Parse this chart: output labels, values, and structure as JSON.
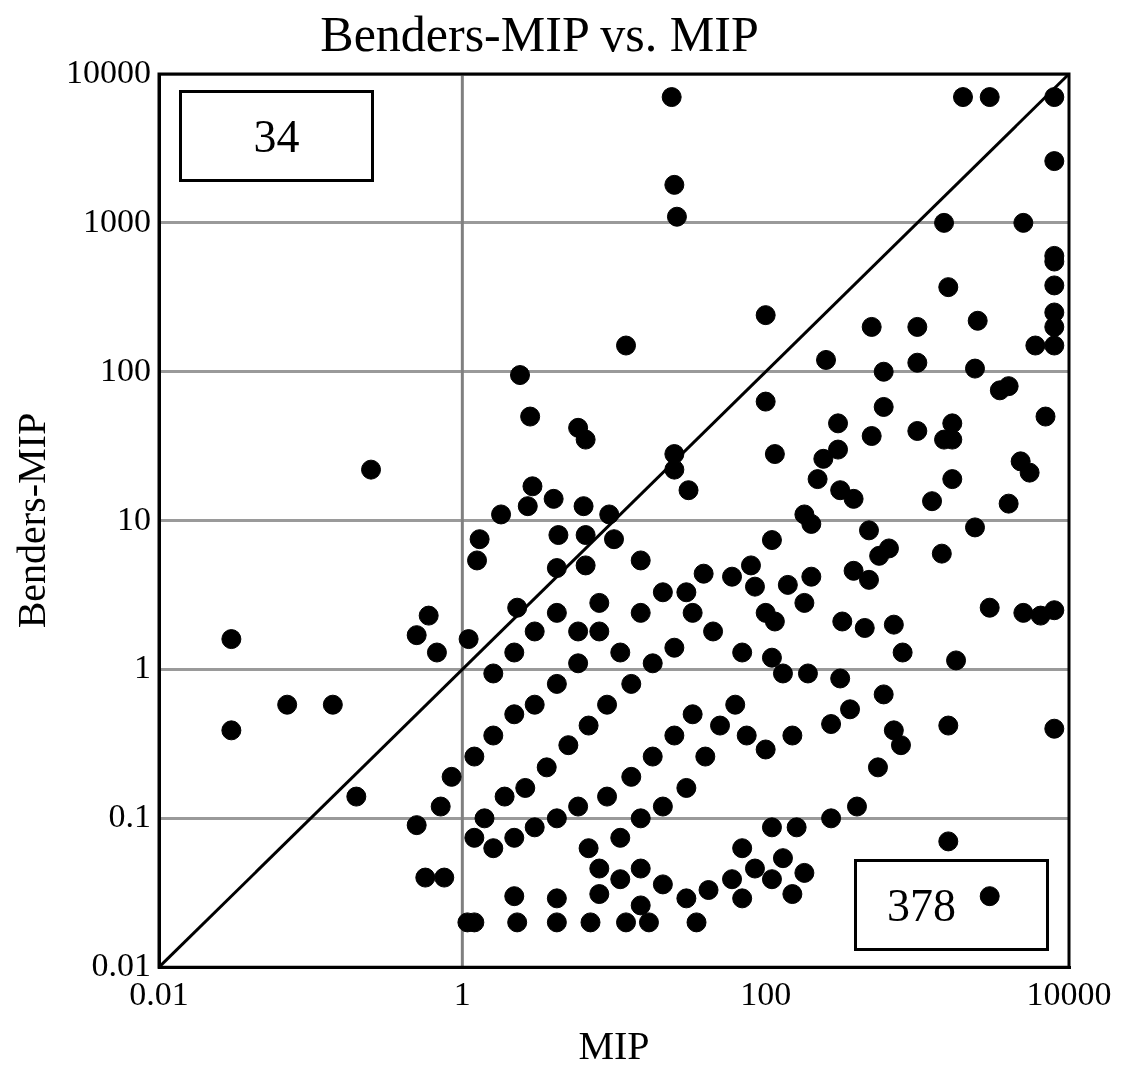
{
  "chart_data": {
    "type": "scatter",
    "title": "Benders-MIP vs. MIP",
    "xlabel": "MIP",
    "ylabel": "Benders-MIP",
    "log": "xy",
    "grid": "y",
    "marker": "circle",
    "legend": false,
    "xlim": [
      0.01,
      10000
    ],
    "xticks": [
      0.01,
      1,
      100,
      10000
    ],
    "ylim": [
      0.01,
      10000
    ],
    "yticks": [
      0.01,
      0.1,
      1,
      10,
      100,
      1000,
      10000
    ],
    "ref_lines": [
      {
        "axis": "x",
        "value": 1,
        "color": "#808080"
      }
    ],
    "annotations": [
      "34",
      "378"
    ],
    "series": [
      {
        "color": "#000000",
        "x": [
          24,
          25,
          26,
          2000,
          3000,
          8000,
          8000,
          1500,
          5000,
          1600,
          8000,
          8000,
          8000,
          8000,
          8000,
          8000,
          6000,
          100,
          12,
          2.4,
          0.25,
          500,
          1000,
          2500,
          250,
          600,
          1000,
          2400,
          3500,
          4000,
          7000,
          600,
          300,
          300,
          500,
          1000,
          1700,
          1700,
          100,
          115,
          25,
          25,
          31,
          5.8,
          6.5,
          2.8,
          2.9,
          2.7,
          4,
          1.3,
          1.25,
          1.8,
          4.3,
          4.2,
          6.3,
          6.5,
          6.5,
          9.3,
          10,
          2.3,
          0.6,
          0.5,
          0.68,
          1.1,
          0.03,
          0.03,
          0.07,
          0.14,
          0.2,
          0.5,
          0.57,
          0.76,
          1.08,
          1.2,
          2.3,
          4.2,
          7,
          12,
          17,
          35,
          3000,
          1600,
          8000,
          1600,
          1800,
          3000,
          5000,
          6500,
          8000,
          2400,
          1450,
          1700,
          1250,
          1500,
          4000,
          5500,
          4800,
          110,
          180,
          200,
          220,
          240,
          310,
          380,
          480,
          560,
          650,
          480,
          380,
          200,
          140,
          115,
          180,
          320,
          450,
          700,
          800,
          600,
          360,
          270,
          150,
          100,
          75,
          63,
          70,
          45,
          33,
          30,
          39,
          60,
          80,
          85,
          100,
          110,
          130,
          190,
          310,
          700,
          780,
          550,
          400,
          270,
          160,
          110,
          130,
          180,
          150,
          110,
          85,
          70,
          70,
          60,
          42,
          30,
          21,
          15,
          11,
          8,
          6.8,
          11,
          15,
          21,
          30,
          40,
          50,
          33,
          25,
          18,
          13,
          9,
          5.8,
          4.2,
          3,
          2.2,
          1.6,
          1.2,
          1.4,
          1.9,
          2.6,
          3.6,
          5,
          6.8,
          9,
          13,
          18,
          25,
          11,
          8,
          5.8,
          4.2,
          3,
          2.2,
          1.6,
          1.2,
          0.85,
          0.72,
          1.6,
          2.2,
          3,
          4.2,
          5.8,
          8,
          15,
          21,
          15,
          2.2,
          4.2,
          8,
          15
        ],
        "values": [
          7000,
          1800,
          1100,
          7000,
          7000,
          7000,
          2600,
          1000,
          1000,
          370,
          600,
          550,
          380,
          250,
          200,
          150,
          150,
          240,
          150,
          95,
          22,
          200,
          200,
          220,
          120,
          100,
          115,
          105,
          75,
          80,
          50,
          58,
          45,
          30,
          37,
          40,
          35,
          45,
          63,
          28,
          28,
          22,
          16,
          42,
          35,
          50,
          17,
          12.5,
          14,
          7.5,
          5.4,
          11,
          8,
          4.8,
          12.5,
          8,
          5,
          11,
          7.5,
          2.6,
          2.3,
          1.7,
          1.3,
          1.6,
          1.6,
          0.39,
          0.58,
          0.58,
          0.14,
          0.09,
          0.04,
          0.04,
          0.02,
          0.02,
          0.02,
          0.02,
          0.02,
          0.02,
          0.02,
          0.02,
          0.03,
          0.07,
          0.4,
          0.42,
          1.15,
          2.6,
          2.4,
          2.3,
          2.5,
          9,
          6,
          19,
          13.5,
          35,
          13,
          21,
          25,
          7.4,
          11,
          9.5,
          19,
          26,
          16,
          14,
          8.6,
          5.8,
          6.5,
          4,
          4.6,
          4.2,
          3.7,
          2.1,
          2.8,
          2.1,
          1.9,
          2,
          1.3,
          0.68,
          0.54,
          0.43,
          0.36,
          0.29,
          0.36,
          0.58,
          1.3,
          1.8,
          2.4,
          3.3,
          4.4,
          4.2,
          5,
          3.6,
          2.4,
          1.2,
          0.94,
          0.94,
          0.87,
          0.39,
          0.31,
          0.22,
          0.12,
          0.1,
          0.087,
          0.087,
          0.054,
          0.043,
          0.031,
          0.039,
          0.046,
          0.063,
          0.029,
          0.039,
          0.033,
          0.029,
          0.036,
          0.046,
          0.039,
          0.046,
          0.063,
          0.074,
          0.1,
          0.12,
          0.16,
          0.26,
          0.42,
          0.5,
          0.36,
          0.26,
          0.19,
          0.14,
          0.12,
          0.1,
          0.087,
          0.074,
          0.063,
          0.074,
          0.1,
          0.14,
          0.16,
          0.22,
          0.31,
          0.42,
          0.58,
          0.8,
          1.1,
          1.4,
          1.3,
          1.8,
          1.1,
          0.8,
          0.58,
          0.5,
          0.36,
          0.26,
          0.19,
          0.12,
          0.94,
          1.3,
          1.8,
          2.4,
          1.8,
          2.8,
          2.4,
          3.3,
          5.4,
          0.03,
          0.029,
          0.031,
          0.026
        ]
      },
      {
        "type": "line",
        "color": "#000000",
        "marker": "none",
        "x": [
          0.01,
          10000
        ],
        "values": [
          0.01,
          10000
        ]
      }
    ]
  }
}
